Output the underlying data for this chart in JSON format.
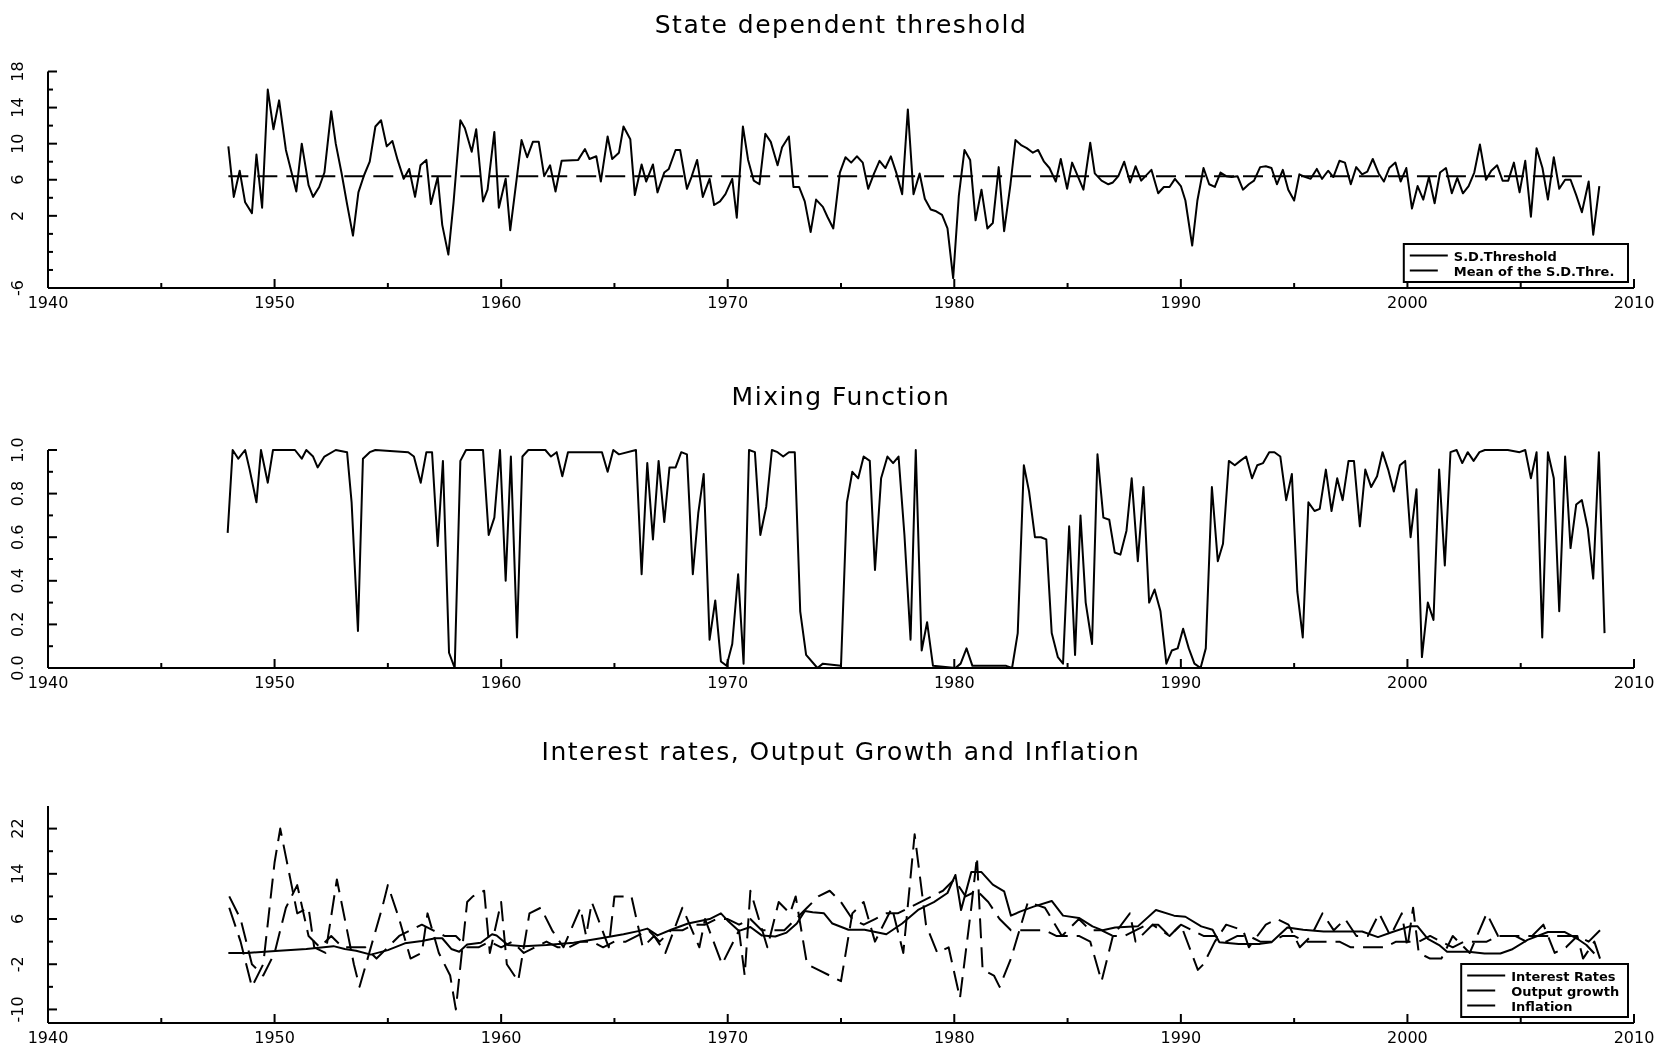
{
  "chart_data": [
    {
      "type": "line",
      "title": "State dependent threshold",
      "legend": "bottom right",
      "xlim": [
        1940,
        2010
      ],
      "xticks": [
        1940,
        {
          "value": 1945,
          "label": null
        },
        1950,
        {
          "value": 1955,
          "label": null
        },
        1960,
        {
          "value": 1965,
          "label": null
        },
        1970,
        {
          "value": 1975,
          "label": null
        },
        1980,
        {
          "value": 1985,
          "label": null
        },
        1990,
        {
          "value": 1995,
          "label": null
        },
        2000,
        {
          "value": 2005,
          "label": null
        },
        2010
      ],
      "ylim": [
        -6,
        18
      ],
      "yticks": [
        -6,
        {
          "value": -4,
          "label": null
        },
        {
          "value": -2,
          "label": null
        },
        {
          "value": 0,
          "label": null
        },
        2,
        {
          "value": 4,
          "label": null
        },
        6,
        {
          "value": 8,
          "label": null
        },
        10,
        {
          "value": 12,
          "label": null
        },
        14,
        {
          "value": 16,
          "label": null
        },
        18
      ],
      "series": [
        {
          "name": "S.D.Threshold",
          "color": "#000000",
          "line_style": "solid",
          "x": [
            1947.96,
            1948.2,
            1948.46,
            1948.7,
            1949.0,
            1949.2,
            1949.45,
            1949.7,
            1949.95,
            1950.2,
            1950.5,
            1950.7,
            1950.96,
            1951.2,
            1951.5,
            1951.7,
            1951.97,
            1952.2,
            1952.5,
            1952.7,
            1952.96,
            1953.2,
            1953.46,
            1953.7,
            1953.95,
            1954.2,
            1954.45,
            1954.7,
            1954.95,
            1955.2,
            1955.43,
            1955.7,
            1955.94,
            1956.2,
            1956.44,
            1956.7,
            1956.9,
            1957.2,
            1957.4,
            1957.67,
            1957.9,
            1958.2,
            1958.4,
            1958.7,
            1958.9,
            1959.2,
            1959.4,
            1959.7,
            1959.9,
            1960.2,
            1960.4,
            1960.9,
            1961.15,
            1961.4,
            1961.66,
            1961.9,
            1962.16,
            1962.4,
            1962.67,
            1963.4,
            1963.7,
            1963.9,
            1964.2,
            1964.4,
            1964.7,
            1964.9,
            1965.2,
            1965.4,
            1965.7,
            1965.9,
            1966.2,
            1966.4,
            1966.7,
            1966.9,
            1967.2,
            1967.4,
            1967.7,
            1967.9,
            1968.2,
            1968.4,
            1968.65,
            1968.9,
            1969.2,
            1969.4,
            1969.66,
            1969.9,
            1970.2,
            1970.4,
            1970.67,
            1970.9,
            1971.15,
            1971.4,
            1971.66,
            1971.9,
            1972.2,
            1972.4,
            1972.7,
            1972.9,
            1973.15,
            1973.4,
            1973.66,
            1973.9,
            1974.2,
            1974.4,
            1974.66,
            1974.95,
            1975.2,
            1975.45,
            1975.7,
            1975.96,
            1976.2,
            1976.46,
            1976.7,
            1976.96,
            1977.2,
            1977.45,
            1977.7,
            1977.95,
            1978.2,
            1978.47,
            1978.7,
            1978.96,
            1979.2,
            1979.46,
            1979.7,
            1979.95,
            1980.2,
            1980.45,
            1980.7,
            1980.94,
            1981.2,
            1981.46,
            1981.7,
            1981.96,
            1982.2,
            1982.48,
            1982.7,
            1982.97,
            1983.2,
            1983.47,
            1983.7,
            1983.96,
            1984.2,
            1984.48,
            1984.7,
            1984.98,
            1985.2,
            1985.7,
            1986.0,
            1986.2,
            1986.5,
            1986.8,
            1987.0,
            1987.24,
            1987.5,
            1987.76,
            1988.0,
            1988.25,
            1988.7,
            1989.0,
            1989.25,
            1989.5,
            1989.74,
            1990.0,
            1990.2,
            1990.5,
            1990.73,
            1991.0,
            1991.25,
            1991.5,
            1991.75,
            1992.0,
            1992.24,
            1992.5,
            1992.74,
            1993.0,
            1993.23,
            1993.5,
            1993.75,
            1994.0,
            1994.24,
            1994.5,
            1994.74,
            1995.0,
            1995.23,
            1995.5,
            1995.73,
            1996.0,
            1996.23,
            1996.5,
            1996.73,
            1997.0,
            1997.24,
            1997.5,
            1997.74,
            1998.0,
            1998.23,
            1998.47,
            1998.73,
            1998.96,
            1999.2,
            1999.47,
            1999.7,
            1999.95,
            2000.2,
            2000.45,
            2000.7,
            2000.95,
            2001.2,
            2001.44,
            2001.7,
            2001.96,
            2002.2,
            2002.45,
            2002.7,
            2002.95,
            2003.2,
            2003.47,
            2003.7,
            2003.96,
            2004.2,
            2004.45,
            2004.7,
            2004.95,
            2005.2,
            2005.45,
            2005.7,
            2005.96,
            2006.2,
            2006.46,
            2006.7,
            2006.96,
            2007.2,
            2007.45,
            2007.7,
            2008.0,
            2008.2,
            2008.47
          ],
          "values": [
            9.7,
            4.1,
            7.0,
            3.5,
            2.3,
            8.8,
            2.9,
            16.0,
            11.6,
            14.8,
            9.3,
            7.3,
            4.7,
            10.0,
            5.4,
            4.1,
            5.2,
            6.8,
            13.6,
            10.0,
            6.7,
            3.3,
            -0.2,
            4.6,
            6.5,
            8.0,
            11.9,
            12.6,
            9.7,
            10.3,
            8.2,
            6.1,
            7.2,
            4.1,
            7.6,
            8.2,
            3.3,
            6.3,
            1.0,
            -2.3,
            3.5,
            12.6,
            11.7,
            9.1,
            11.6,
            3.6,
            4.9,
            11.3,
            2.9,
            6.1,
            0.4,
            10.4,
            8.5,
            10.2,
            10.2,
            6.4,
            7.6,
            4.7,
            8.1,
            8.2,
            9.4,
            8.3,
            8.6,
            5.8,
            10.8,
            8.3,
            9.0,
            11.9,
            10.5,
            4.3,
            7.7,
            5.8,
            7.7,
            4.6,
            6.8,
            7.2,
            9.3,
            9.3,
            5.0,
            6.3,
            8.2,
            4.1,
            6.1,
            3.2,
            3.6,
            4.4,
            6.1,
            1.8,
            11.9,
            8.2,
            5.9,
            5.5,
            11.1,
            10.2,
            7.6,
            9.6,
            10.8,
            5.2,
            5.2,
            3.6,
            0.2,
            3.8,
            3.0,
            1.9,
            0.6,
            6.8,
            8.5,
            7.9,
            8.6,
            7.9,
            5.0,
            6.7,
            8.1,
            7.3,
            8.6,
            6.7,
            4.4,
            13.8,
            4.4,
            6.7,
            3.9,
            2.7,
            2.5,
            2.1,
            0.6,
            -4.9,
            4.2,
            9.3,
            8.2,
            1.5,
            4.9,
            0.6,
            1.2,
            7.4,
            0.3,
            5.5,
            10.4,
            9.8,
            9.5,
            9.0,
            9.3,
            8.0,
            7.3,
            5.8,
            8.3,
            5.0,
            7.9,
            4.9,
            10.1,
            6.7,
            5.9,
            5.5,
            5.7,
            6.4,
            8.0,
            5.7,
            7.5,
            5.9,
            7.1,
            4.5,
            5.2,
            5.2,
            6.1,
            5.3,
            3.7,
            -1.3,
            3.7,
            7.3,
            5.5,
            5.2,
            6.8,
            6.4,
            6.3,
            6.4,
            4.9,
            5.5,
            5.9,
            7.4,
            7.5,
            7.3,
            5.5,
            7.1,
            4.9,
            3.7,
            6.6,
            6.3,
            6.1,
            7.2,
            6.1,
            7.0,
            6.3,
            8.1,
            7.9,
            5.5,
            7.4,
            6.6,
            6.9,
            8.3,
            6.7,
            5.8,
            7.3,
            7.9,
            5.8,
            7.3,
            2.8,
            5.3,
            3.8,
            6.3,
            3.4,
            6.8,
            7.3,
            4.5,
            6.2,
            4.5,
            5.3,
            6.8,
            9.9,
            6.0,
            7.0,
            7.6,
            5.9,
            5.9,
            7.9,
            4.6,
            8.1,
            1.9,
            9.5,
            7.3,
            3.8,
            8.5,
            5.0,
            6.0,
            6.0,
            4.3,
            2.4,
            5.8,
            -0.1,
            5.3
          ]
        },
        {
          "name": "Mean of the S.D.Thre.",
          "color": "#000000",
          "line_style": "dashed",
          "x": [
            1947.96,
            2007.7
          ],
          "values": [
            6.4,
            6.4
          ]
        }
      ]
    },
    {
      "type": "line",
      "title": "Mixing Function",
      "xlim": [
        1940,
        2010
      ],
      "xticks": [
        1940,
        {
          "value": 1945,
          "label": null
        },
        1950,
        {
          "value": 1955,
          "label": null
        },
        1960,
        {
          "value": 1965,
          "label": null
        },
        1970,
        {
          "value": 1975,
          "label": null
        },
        1980,
        {
          "value": 1985,
          "label": null
        },
        1990,
        {
          "value": 1995,
          "label": null
        },
        2000,
        {
          "value": 2005,
          "label": null
        },
        2010
      ],
      "ylim": [
        0,
        1
      ],
      "yticks": [
        {
          "value": 0,
          "label": "0.0"
        },
        {
          "value": 0.1,
          "label": null
        },
        0.2,
        {
          "value": 0.3,
          "label": null
        },
        0.4,
        {
          "value": 0.5,
          "label": null
        },
        0.6,
        {
          "value": 0.7,
          "label": null
        },
        0.8,
        {
          "value": 0.9,
          "label": null
        },
        {
          "value": 1,
          "label": "1.0"
        }
      ],
      "series": [
        {
          "color": "#000000",
          "line_style": "solid",
          "x": [
            1947.93,
            1948.15,
            1948.4,
            1948.7,
            1948.9,
            1949.2,
            1949.4,
            1949.7,
            1949.93,
            1950.9,
            1951.2,
            1951.4,
            1951.7,
            1951.9,
            1952.2,
            1952.7,
            1953.2,
            1953.4,
            1953.68,
            1953.9,
            1954.2,
            1954.45,
            1955.9,
            1956.15,
            1956.45,
            1956.7,
            1956.95,
            1957.2,
            1957.43,
            1957.7,
            1957.95,
            1958.2,
            1958.45,
            1959.2,
            1959.45,
            1959.7,
            1959.95,
            1960.2,
            1960.43,
            1960.7,
            1960.94,
            1961.2,
            1961.95,
            1962.2,
            1962.45,
            1962.7,
            1962.95,
            1964.45,
            1964.7,
            1964.95,
            1965.2,
            1965.95,
            1966.2,
            1966.45,
            1966.7,
            1966.95,
            1967.2,
            1967.43,
            1967.7,
            1967.95,
            1968.2,
            1968.46,
            1968.7,
            1968.94,
            1969.2,
            1969.45,
            1969.7,
            1969.95,
            1970.2,
            1970.46,
            1970.7,
            1970.94,
            1971.2,
            1971.44,
            1971.7,
            1971.95,
            1972.2,
            1972.45,
            1972.7,
            1972.96,
            1973.2,
            1973.46,
            1973.96,
            1974.2,
            1975.0,
            1975.26,
            1975.5,
            1975.76,
            1976.0,
            1976.27,
            1976.5,
            1976.77,
            1977.05,
            1977.3,
            1977.54,
            1977.8,
            1978.07,
            1978.3,
            1978.56,
            1978.8,
            1979.06,
            1980.05,
            1980.28,
            1980.54,
            1980.8,
            1982.29,
            1982.55,
            1982.8,
            1983.07,
            1983.3,
            1983.56,
            1983.82,
            1984.06,
            1984.3,
            1984.57,
            1984.8,
            1985.07,
            1985.33,
            1985.57,
            1985.8,
            1986.08,
            1986.32,
            1986.58,
            1986.84,
            1987.08,
            1987.33,
            1987.6,
            1987.83,
            1988.1,
            1988.35,
            1988.6,
            1988.84,
            1989.1,
            1989.36,
            1989.6,
            1989.86,
            1990.1,
            1990.35,
            1990.6,
            1990.87,
            1991.1,
            1991.37,
            1991.63,
            1991.86,
            1992.12,
            1992.38,
            1992.62,
            1992.88,
            1993.14,
            1993.37,
            1993.63,
            1993.9,
            1994.13,
            1994.39,
            1994.65,
            1994.9,
            1995.14,
            1995.38,
            1995.63,
            1995.9,
            1996.13,
            1996.4,
            1996.65,
            1996.9,
            1997.14,
            1997.4,
            1997.64,
            1997.9,
            1998.14,
            1998.4,
            1998.66,
            1998.9,
            1999.15,
            1999.4,
            1999.67,
            1999.9,
            2000.14,
            2000.4,
            2000.64,
            2000.9,
            2001.15,
            2001.4,
            2001.65,
            2001.9,
            2002.17,
            2002.42,
            2002.66,
            2002.92,
            2003.18,
            2003.42,
            2003.68,
            2004.43,
            2004.95,
            2005.2,
            2005.45,
            2005.7,
            2005.95,
            2006.2,
            2006.46,
            2006.7,
            2006.96,
            2007.2,
            2007.45,
            2007.7,
            2007.96,
            2008.2,
            2008.45,
            2008.7
          ],
          "values": [
            0.62,
            1.0,
            0.96,
            1.0,
            0.91,
            0.76,
            1.0,
            0.85,
            1.0,
            1.0,
            0.96,
            1.0,
            0.97,
            0.92,
            0.97,
            1.0,
            0.99,
            0.76,
            0.17,
            0.96,
            0.99,
            1.0,
            0.99,
            0.97,
            0.85,
            0.99,
            0.99,
            0.56,
            0.95,
            0.07,
            0.0,
            0.95,
            1.0,
            1.0,
            0.61,
            0.69,
            1.0,
            0.4,
            0.97,
            0.14,
            0.97,
            1.0,
            1.0,
            0.97,
            0.99,
            0.88,
            0.99,
            0.99,
            0.9,
            1.0,
            0.98,
            1.0,
            0.43,
            0.94,
            0.59,
            0.95,
            0.67,
            0.92,
            0.92,
            0.99,
            0.98,
            0.43,
            0.71,
            0.89,
            0.13,
            0.31,
            0.03,
            0.01,
            0.11,
            0.43,
            0.02,
            1.0,
            0.99,
            0.61,
            0.74,
            1.0,
            0.99,
            0.97,
            0.99,
            0.99,
            0.26,
            0.06,
            0.0,
            0.02,
            0.01,
            0.76,
            0.9,
            0.87,
            0.97,
            0.95,
            0.45,
            0.87,
            0.97,
            0.94,
            0.97,
            0.61,
            0.13,
            1.0,
            0.08,
            0.21,
            0.01,
            0.0,
            0.02,
            0.09,
            0.01,
            0.01,
            0.0,
            0.16,
            0.93,
            0.81,
            0.6,
            0.6,
            0.59,
            0.16,
            0.05,
            0.02,
            0.65,
            0.06,
            0.7,
            0.3,
            0.11,
            0.98,
            0.69,
            0.68,
            0.53,
            0.52,
            0.63,
            0.87,
            0.49,
            0.83,
            0.3,
            0.36,
            0.26,
            0.02,
            0.08,
            0.09,
            0.18,
            0.09,
            0.02,
            0.0,
            0.09,
            0.83,
            0.49,
            0.57,
            0.95,
            0.93,
            0.95,
            0.97,
            0.87,
            0.93,
            0.94,
            0.99,
            0.99,
            0.97,
            0.77,
            0.89,
            0.35,
            0.14,
            0.76,
            0.72,
            0.73,
            0.91,
            0.72,
            0.87,
            0.77,
            0.95,
            0.95,
            0.65,
            0.91,
            0.83,
            0.88,
            0.99,
            0.91,
            0.81,
            0.93,
            0.95,
            0.6,
            0.82,
            0.05,
            0.3,
            0.22,
            0.91,
            0.47,
            0.99,
            1.0,
            0.94,
            0.99,
            0.95,
            0.99,
            1.0,
            1.0,
            1.0,
            0.99,
            1.0,
            0.87,
            0.99,
            0.14,
            0.99,
            0.87,
            0.26,
            0.97,
            0.55,
            0.75,
            0.77,
            0.64,
            0.41,
            0.99,
            0.16
          ]
        }
      ]
    },
    {
      "type": "line",
      "title": "Interest rates, Output Growth and Inflation",
      "legend": "bottom right",
      "xlim": [
        1940,
        2010
      ],
      "xticks": [
        1940,
        {
          "value": 1945,
          "label": null
        },
        1950,
        {
          "value": 1955,
          "label": null
        },
        1960,
        {
          "value": 1965,
          "label": null
        },
        1970,
        {
          "value": 1975,
          "label": null
        },
        1980,
        {
          "value": 1985,
          "label": null
        },
        1990,
        {
          "value": 1995,
          "label": null
        },
        2000,
        {
          "value": 2005,
          "label": null
        },
        2010
      ],
      "ylim": [
        -12.4,
        26
      ],
      "yticks": [
        -10,
        {
          "value": -6,
          "label": null
        },
        -2,
        {
          "value": 2,
          "label": null
        },
        6,
        {
          "value": 10,
          "label": null
        },
        14,
        {
          "value": 18,
          "label": null
        },
        22
      ],
      "series": [
        {
          "name": "Interest Rates",
          "color": "#000000",
          "line_style": "solid",
          "x": [
            1947.96,
            1948.8,
            1950.2,
            1951.4,
            1952.6,
            1953.1,
            1953.6,
            1954.25,
            1955.0,
            1955.75,
            1956.5,
            1957.1,
            1957.4,
            1957.8,
            1958.15,
            1958.5,
            1959.1,
            1959.6,
            1959.8,
            1960.3,
            1961.0,
            1962.0,
            1963.2,
            1964.4,
            1965.4,
            1966.1,
            1966.45,
            1966.9,
            1967.5,
            1968.25,
            1969.2,
            1969.7,
            1970.05,
            1970.5,
            1971.0,
            1971.5,
            1972.1,
            1972.6,
            1973.05,
            1973.4,
            1973.75,
            1974.25,
            1974.62,
            1975.33,
            1976.04,
            1977.0,
            1977.7,
            1978.4,
            1979.1,
            1979.7,
            1980.05,
            1980.3,
            1980.75,
            1981.2,
            1981.7,
            1982.2,
            1982.5,
            1982.9,
            1983.5,
            1984.3,
            1984.8,
            1985.5,
            1986.1,
            1986.55,
            1987.1,
            1988.1,
            1988.9,
            1989.7,
            1990.2,
            1990.9,
            1991.4,
            1991.7,
            1992.55,
            1993.5,
            1994.0,
            1994.7,
            1995.4,
            1996.3,
            1998.0,
            1998.7,
            1999.4,
            2000.1,
            2000.45,
            2000.9,
            2001.4,
            2001.75,
            2002.7,
            2003.4,
            2004.1,
            2004.6,
            2005.3,
            2006.2,
            2006.95,
            2007.5,
            2007.9,
            2008.25
          ],
          "values": [
            0.0,
            0.0,
            0.4,
            0.7,
            1.2,
            0.7,
            0.4,
            -0.3,
            0.5,
            1.7,
            2.1,
            2.6,
            2.6,
            0.7,
            0.2,
            1.5,
            1.8,
            3.3,
            3.1,
            1.4,
            1.2,
            1.4,
            1.8,
            2.6,
            3.3,
            3.9,
            4.3,
            3.1,
            4.1,
            5.2,
            6.0,
            7.0,
            5.5,
            3.9,
            4.6,
            3.1,
            2.9,
            3.6,
            5.2,
            7.4,
            7.2,
            7.0,
            5.2,
            4.1,
            4.1,
            3.3,
            5.2,
            7.6,
            9.0,
            10.6,
            13.8,
            7.6,
            14.3,
            14.3,
            12.1,
            10.9,
            6.6,
            7.3,
            8.2,
            9.2,
            6.6,
            6.2,
            4.7,
            4.0,
            4.5,
            4.7,
            7.6,
            6.6,
            6.4,
            4.7,
            4.1,
            1.9,
            1.6,
            1.6,
            1.9,
            4.5,
            4.1,
            3.8,
            3.8,
            2.8,
            3.8,
            4.7,
            4.7,
            2.5,
            1.4,
            0.2,
            0.2,
            -0.1,
            -0.1,
            0.6,
            2.3,
            3.7,
            3.7,
            2.5,
            1.4,
            -0.1
          ]
        },
        {
          "name": "Output growth",
          "color": "#000000",
          "line_style": "dashed",
          "x": [
            1948,
            1948.5,
            1949,
            1949.5,
            1950,
            1950.25,
            1950.5,
            1950.75,
            1951,
            1951.5,
            1951.75,
            1952.25,
            1952.75,
            1953,
            1953.5,
            1953.75,
            1954.25,
            1954.75,
            1955,
            1955.5,
            1956,
            1956.5,
            1956.75,
            1957.25,
            1957.75,
            1958,
            1958.5,
            1958.75,
            1959.25,
            1959.5,
            1960,
            1960.25,
            1960.75,
            1961.25,
            1961.75,
            1962.25,
            1962.75,
            1963.5,
            1963.75,
            1964,
            1964.75,
            1965,
            1965.75,
            1966.25,
            1966.75,
            1967.25,
            1968,
            1968.75,
            1969,
            1969.75,
            1970.5,
            1970.75,
            1971,
            1971.75,
            1972.25,
            1972.75,
            1973,
            1973.5,
            1974,
            1974.5,
            1975,
            1975.5,
            1976,
            1976.5,
            1977.25,
            1977.75,
            1978.25,
            1978.75,
            1979.25,
            1979.75,
            1980.25,
            1980.75,
            1981,
            1981.25,
            1981.75,
            1982,
            1982.5,
            1983.25,
            1984,
            1984.75,
            1985.5,
            1986,
            1986.5,
            1987,
            1987.75,
            1988,
            1988.75,
            1989.5,
            1990,
            1990.75,
            1991,
            1991.5,
            1992,
            1992.75,
            1993,
            1993.75,
            1994.25,
            1994.75,
            1995.25,
            1995.75,
            1996.25,
            1996.75,
            1997.25,
            1997.75,
            1998.25,
            1998.75,
            1999.25,
            1999.75,
            2000,
            2000.25,
            2000.5,
            2001,
            2001.5,
            2002,
            2002.75,
            2003.5,
            2004,
            2004.75,
            2005.25,
            2006,
            2006.5,
            2007,
            2007.5,
            2007.75,
            2008.25,
            2008.5
          ],
          "values": [
            8,
            2,
            -6,
            -2,
            16,
            22,
            17,
            12,
            7,
            8,
            1,
            0,
            13,
            8,
            -2,
            -6,
            1,
            8,
            12,
            6,
            -1,
            0,
            7,
            0,
            -4,
            -10,
            9,
            10,
            11,
            0,
            9,
            -2,
            -5,
            7,
            8,
            4,
            1,
            8,
            3,
            9,
            1,
            10,
            10,
            1,
            3,
            0,
            8,
            1,
            6,
            -2,
            4,
            -4,
            11,
            1,
            9,
            7,
            10,
            -2,
            -3,
            -4,
            -5,
            7,
            9,
            2,
            8,
            0,
            21,
            5,
            0,
            1,
            -8,
            8,
            17,
            -3,
            -4,
            -6,
            -1,
            9,
            8,
            3,
            6,
            4,
            4,
            3,
            7,
            2,
            5,
            3,
            5,
            -3,
            -2,
            2,
            5,
            4,
            1,
            5,
            6,
            5,
            1,
            3,
            7,
            4,
            6,
            3,
            3,
            7,
            3,
            7,
            1,
            8,
            0,
            -1,
            -1,
            3,
            0,
            7,
            3,
            3,
            2,
            5,
            0,
            1,
            3,
            -1,
            2,
            -1
          ]
        },
        {
          "name": "Inflation",
          "color": "#000000",
          "line_style": "dashed",
          "x": [
            1948,
            1948.5,
            1949,
            1949.5,
            1950,
            1950.5,
            1951,
            1951.5,
            1952,
            1952.5,
            1953,
            1953.5,
            1954,
            1954.5,
            1955,
            1955.5,
            1956,
            1956.5,
            1957,
            1957.5,
            1958,
            1958.5,
            1959,
            1959.5,
            1960,
            1960.5,
            1961,
            1961.5,
            1962,
            1962.5,
            1963,
            1963.5,
            1964,
            1964.5,
            1965,
            1965.5,
            1966,
            1966.5,
            1967,
            1967.5,
            1968,
            1968.5,
            1969,
            1969.5,
            1970,
            1970.5,
            1971,
            1971.5,
            1972,
            1972.5,
            1973,
            1973.5,
            1974,
            1974.5,
            1975,
            1975.5,
            1976,
            1976.5,
            1977,
            1977.5,
            1978,
            1978.5,
            1979,
            1979.5,
            1980,
            1980.5,
            1981,
            1981.5,
            1982,
            1982.5,
            1983,
            1983.5,
            1984,
            1984.5,
            1985,
            1985.5,
            1986,
            1986.5,
            1987,
            1987.5,
            1988,
            1988.5,
            1989,
            1989.5,
            1990,
            1990.5,
            1991,
            1991.5,
            1992,
            1992.5,
            1993,
            1993.5,
            1994,
            1994.5,
            1995,
            1995.5,
            1996,
            1996.5,
            1997,
            1997.5,
            1998,
            1998.5,
            1999,
            1999.5,
            2000,
            2000.5,
            2001,
            2001.5,
            2002,
            2002.5,
            2003,
            2003.5,
            2004,
            2004.5,
            2005,
            2005.5,
            2006,
            2006.5,
            2007,
            2007.5,
            2008,
            2008.5
          ],
          "values": [
            10,
            6,
            -2,
            -4,
            0,
            8,
            12,
            3,
            1,
            3,
            1,
            1,
            1,
            -1,
            1,
            3,
            4,
            5,
            4,
            3,
            3,
            1,
            1,
            2,
            1,
            2,
            0,
            1,
            2,
            1,
            1,
            2,
            2,
            1,
            2,
            2,
            3,
            4,
            2,
            4,
            4,
            5,
            5,
            6,
            6,
            5,
            6,
            4,
            4,
            4,
            6,
            8,
            10,
            11,
            9,
            6,
            5,
            6,
            7,
            7,
            8,
            9,
            10,
            11,
            13,
            10,
            11,
            9,
            6,
            4,
            4,
            4,
            4,
            3,
            3,
            3,
            2,
            -5,
            3,
            3,
            4,
            5,
            5,
            3,
            5,
            4,
            3,
            3,
            2,
            3,
            3,
            2,
            2,
            3,
            3,
            2,
            2,
            2,
            2,
            1,
            1,
            1,
            1,
            2,
            2,
            2,
            3,
            2,
            1,
            2,
            2,
            2,
            3,
            3,
            3,
            3,
            3,
            3,
            3,
            3,
            2,
            4
          ]
        }
      ]
    }
  ]
}
